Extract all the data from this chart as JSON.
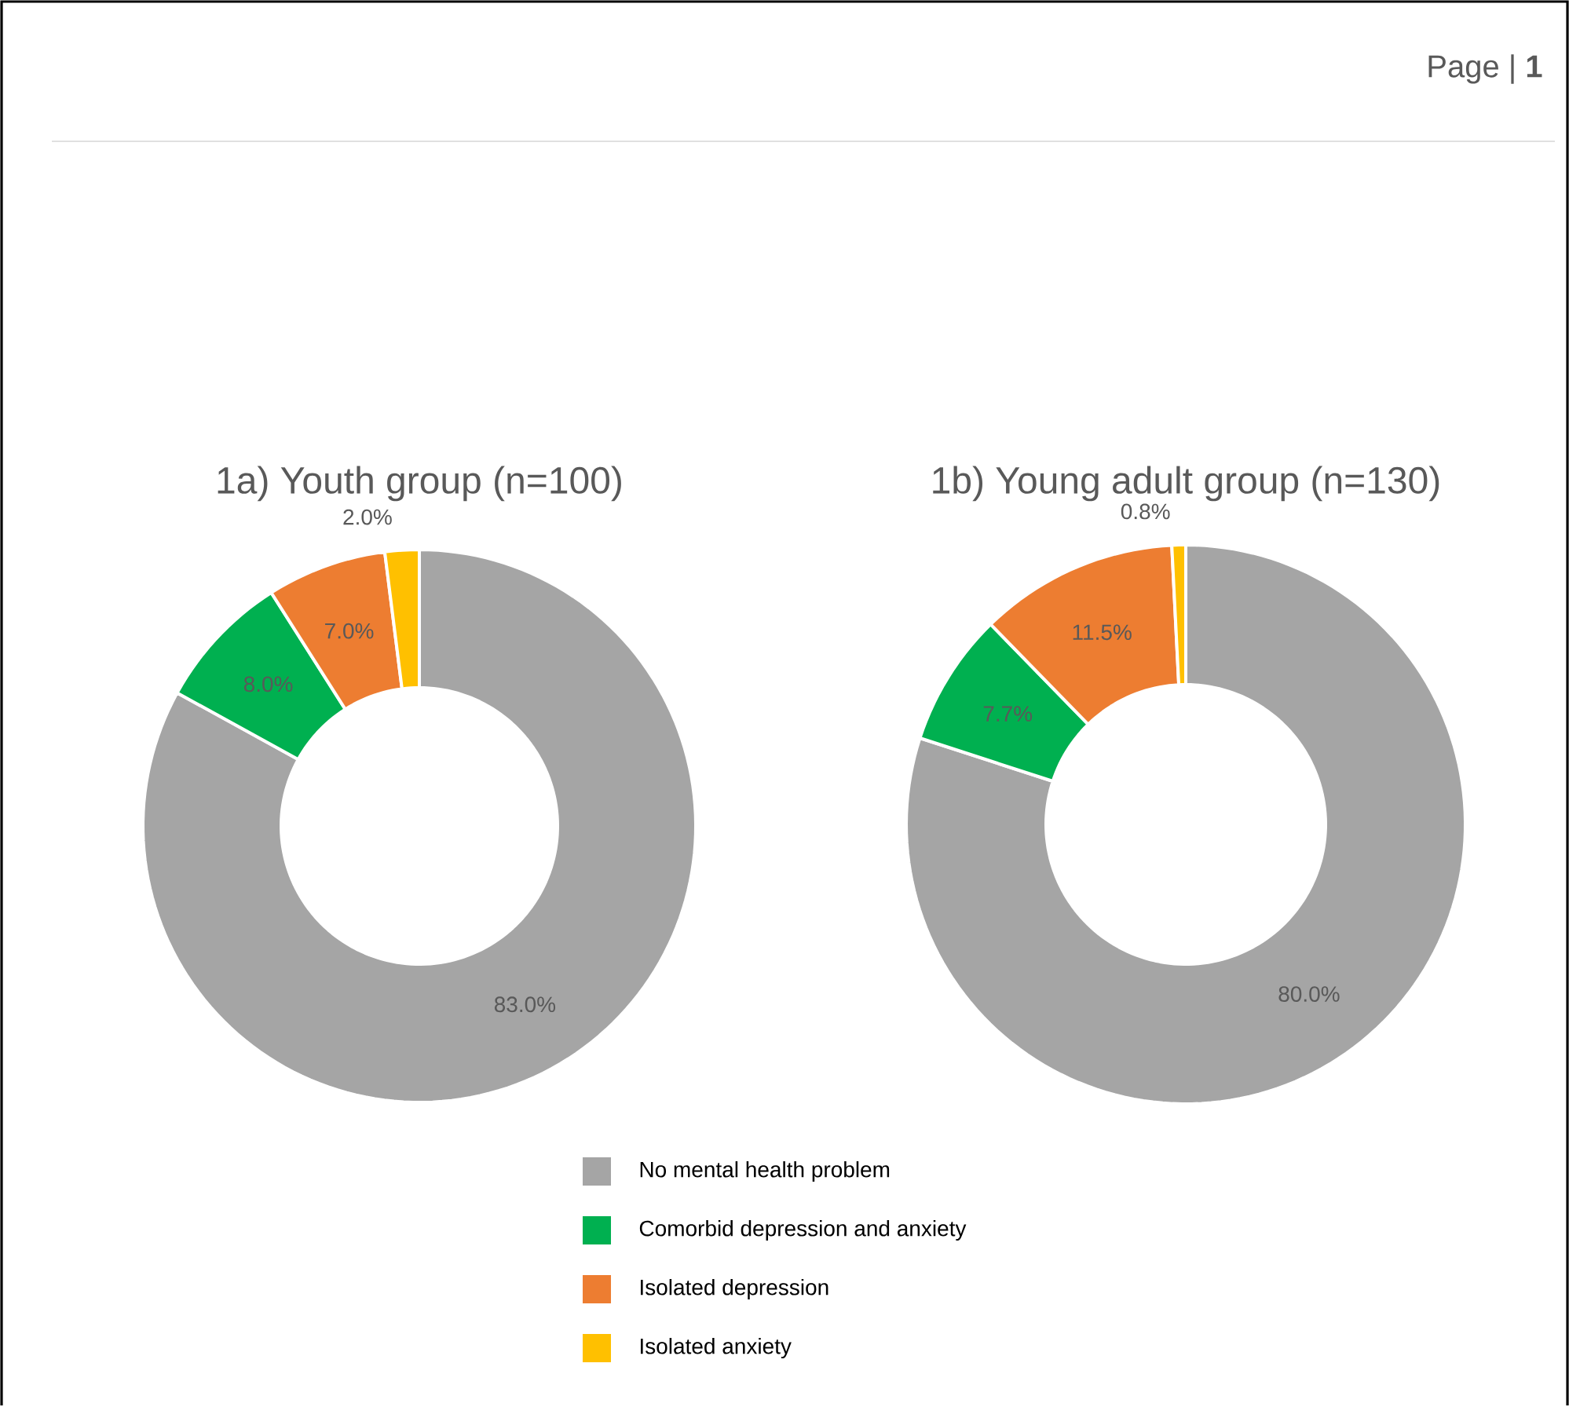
{
  "chart_data": [
    {
      "type": "donut",
      "title": "1a) Youth group (n=100)",
      "annotations": [
        "Page | **1**"
      ],
      "legend": "bottom",
      "categories": [
        "No mental health problem",
        "Comorbid depression and anxiety",
        "Isolated depression",
        "Isolated anxiety"
      ],
      "values": [
        83.0,
        8.0,
        7.0,
        2.0
      ],
      "value_labels": [
        "83.0%",
        "8.0%",
        "7.0%",
        "2.0%"
      ],
      "colors": [
        "#a5a5a5",
        "#00b050",
        "#ed7d31",
        "#ffc000"
      ]
    },
    {
      "type": "donut",
      "title": "1b) Young adult group (n=130)",
      "categories": [
        null,
        null,
        null,
        null
      ],
      "values": [
        80.0,
        7.7,
        11.5,
        0.8
      ],
      "value_labels": [
        "80.0%",
        "7.7%",
        "11.5%",
        "0.8%"
      ],
      "colors": [
        "#a5a5a5",
        "#00b050",
        "#ed7d31",
        "#ffc000"
      ]
    }
  ]
}
